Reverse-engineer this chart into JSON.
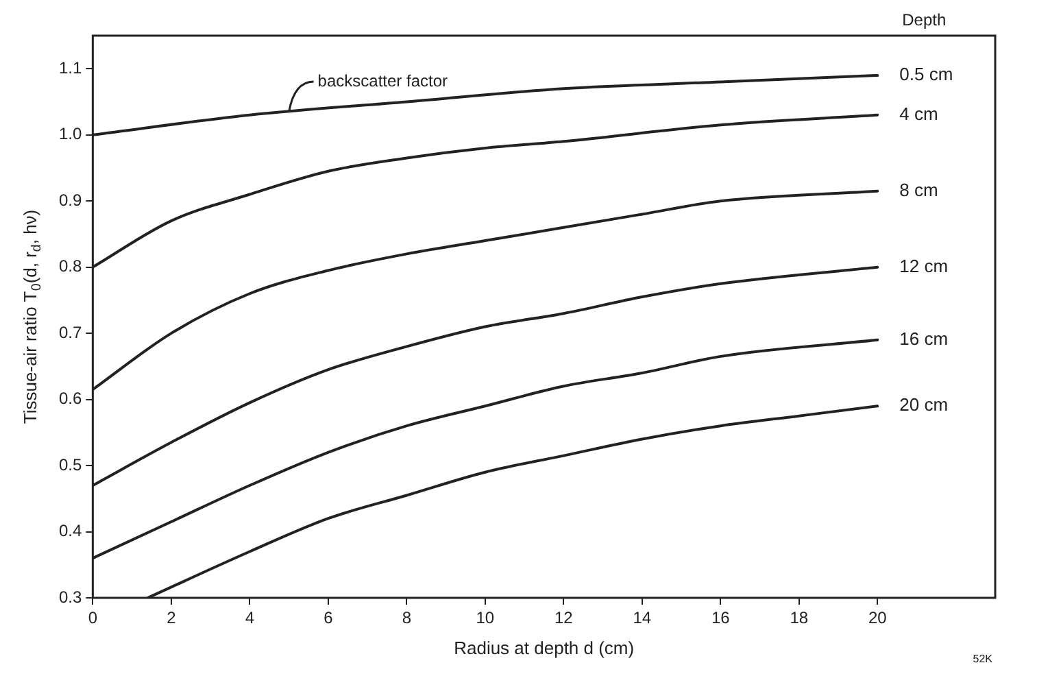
{
  "chart_data": {
    "type": "line",
    "xlabel": "Radius at depth d (cm)",
    "ylabel": "Tissue-air ratio T$_{0}$(d, r$_{d}$, hν)",
    "legend_title": "Depth",
    "xlim": [
      0,
      23
    ],
    "xticks": [
      0,
      2,
      4,
      6,
      8,
      10,
      12,
      14,
      16,
      18,
      20
    ],
    "ylim": [
      0.3,
      1.15
    ],
    "yticks": [
      {
        "value": 0.3,
        "label": "0.3"
      },
      {
        "value": 0.4,
        "label": "0.4"
      },
      {
        "value": 0.5,
        "label": "0.5"
      },
      {
        "value": 0.6,
        "label": "0.6"
      },
      {
        "value": 0.7,
        "label": "0.7"
      },
      {
        "value": 0.8,
        "label": "0.8"
      },
      {
        "value": 0.9,
        "label": "0.9"
      },
      {
        "value": 1.0,
        "label": "1.0"
      },
      {
        "value": 1.1,
        "label": "1.1"
      }
    ],
    "grid": false,
    "legend": false,
    "marker": "none",
    "line_style": "solid",
    "series": [
      {
        "name": "0.5 cm",
        "color": "#222222",
        "x": [
          0,
          4,
          8,
          12,
          16,
          20
        ],
        "values": [
          1.0,
          1.03,
          1.05,
          1.07,
          1.08,
          1.09
        ]
      },
      {
        "name": "4 cm",
        "color": "#222222",
        "x": [
          0,
          2,
          4,
          6,
          8,
          10,
          12,
          16,
          20
        ],
        "values": [
          0.8,
          0.87,
          0.91,
          0.945,
          0.965,
          0.98,
          0.99,
          1.015,
          1.03
        ]
      },
      {
        "name": "8 cm",
        "color": "#222222",
        "x": [
          0,
          2,
          4,
          6,
          8,
          10,
          12,
          14,
          16,
          20
        ],
        "values": [
          0.615,
          0.7,
          0.76,
          0.795,
          0.82,
          0.84,
          0.86,
          0.88,
          0.9,
          0.915
        ]
      },
      {
        "name": "12 cm",
        "color": "#222222",
        "x": [
          0,
          2,
          4,
          6,
          8,
          10,
          12,
          14,
          16,
          20
        ],
        "values": [
          0.47,
          0.535,
          0.595,
          0.645,
          0.68,
          0.71,
          0.73,
          0.755,
          0.775,
          0.8
        ]
      },
      {
        "name": "16 cm",
        "color": "#222222",
        "x": [
          0,
          2,
          4,
          6,
          8,
          10,
          12,
          14,
          16,
          20
        ],
        "values": [
          0.36,
          0.415,
          0.47,
          0.52,
          0.56,
          0.59,
          0.62,
          0.64,
          0.665,
          0.69
        ]
      },
      {
        "name": "20 cm",
        "color": "#222222",
        "x": [
          1.4,
          4,
          6,
          8,
          10,
          12,
          14,
          16,
          18,
          20
        ],
        "values": [
          0.3,
          0.37,
          0.42,
          0.455,
          0.49,
          0.515,
          0.54,
          0.56,
          0.575,
          0.59
        ]
      }
    ],
    "annotations": [
      {
        "text": "backscatter factor",
        "x": 5,
        "y": 1.035
      },
      "52K"
    ]
  }
}
